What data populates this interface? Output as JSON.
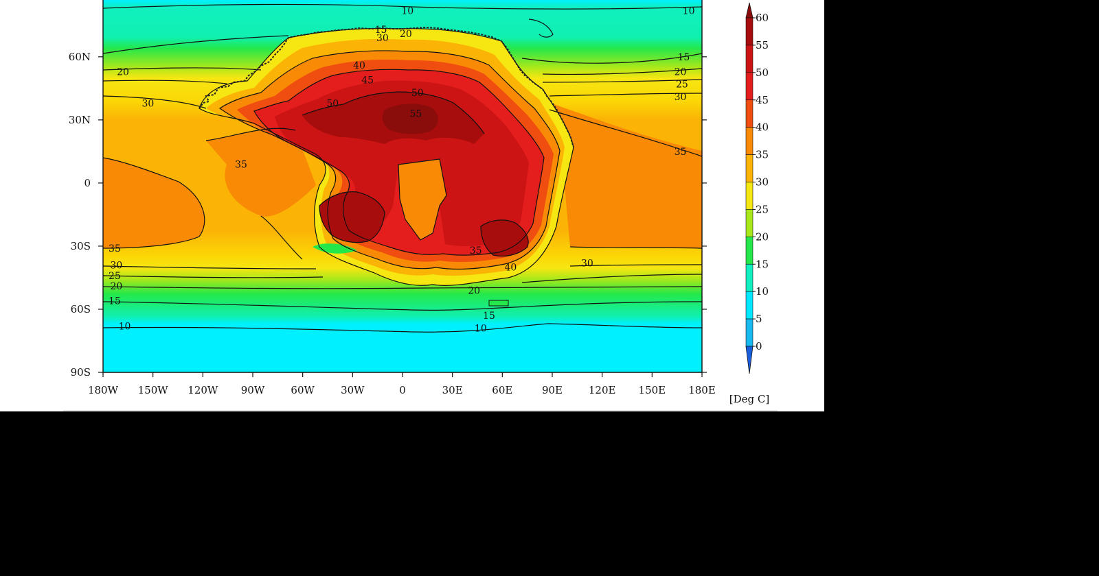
{
  "map": {
    "lat_ticks": [
      {
        "label": "60N",
        "lat": 60
      },
      {
        "label": "30N",
        "lat": 30
      },
      {
        "label": "0",
        "lat": 0
      },
      {
        "label": "30S",
        "lat": -30
      },
      {
        "label": "60S",
        "lat": -60
      },
      {
        "label": "90S",
        "lat": -90
      }
    ],
    "lon_ticks": [
      {
        "label": "180W",
        "lon": -180
      },
      {
        "label": "150W",
        "lon": -150
      },
      {
        "label": "120W",
        "lon": -120
      },
      {
        "label": "90W",
        "lon": -90
      },
      {
        "label": "60W",
        "lon": -60
      },
      {
        "label": "30W",
        "lon": -30
      },
      {
        "label": "0",
        "lon": 0
      },
      {
        "label": "30E",
        "lon": 30
      },
      {
        "label": "60E",
        "lon": 60
      },
      {
        "label": "90E",
        "lon": 90
      },
      {
        "label": "120E",
        "lon": 120
      },
      {
        "label": "150E",
        "lon": 150
      },
      {
        "label": "180E",
        "lon": 180
      }
    ],
    "lat_range": [
      -90,
      87
    ],
    "lon_range": [
      -180,
      180
    ],
    "contour_labels": [
      {
        "text": "10",
        "lon": 3,
        "lat": 82
      },
      {
        "text": "10",
        "lon": 172,
        "lat": 82
      },
      {
        "text": "15",
        "lon": -13,
        "lat": 73
      },
      {
        "text": "30",
        "lon": -12,
        "lat": 69
      },
      {
        "text": "20",
        "lon": 2,
        "lat": 71
      },
      {
        "text": "15",
        "lon": 169,
        "lat": 60
      },
      {
        "text": "20",
        "lon": -168,
        "lat": 53
      },
      {
        "text": "20",
        "lon": 167,
        "lat": 53
      },
      {
        "text": "25",
        "lon": 168,
        "lat": 47
      },
      {
        "text": "30",
        "lon": 167,
        "lat": 41
      },
      {
        "text": "30",
        "lon": -153,
        "lat": 38
      },
      {
        "text": "35",
        "lon": 167,
        "lat": 15
      },
      {
        "text": "35",
        "lon": -97,
        "lat": 9
      },
      {
        "text": "40",
        "lon": -26,
        "lat": 56
      },
      {
        "text": "45",
        "lon": -21,
        "lat": 49
      },
      {
        "text": "50",
        "lon": 9,
        "lat": 43
      },
      {
        "text": "50",
        "lon": -42,
        "lat": 38
      },
      {
        "text": "55",
        "lon": 8,
        "lat": 33
      },
      {
        "text": "35",
        "lon": -173,
        "lat": -31
      },
      {
        "text": "30",
        "lon": -172,
        "lat": -39
      },
      {
        "text": "25",
        "lon": -173,
        "lat": -44
      },
      {
        "text": "20",
        "lon": -172,
        "lat": -49
      },
      {
        "text": "15",
        "lon": -173,
        "lat": -56
      },
      {
        "text": "10",
        "lon": -167,
        "lat": -68
      },
      {
        "text": "20",
        "lon": 43,
        "lat": -51
      },
      {
        "text": "15",
        "lon": 52,
        "lat": -63
      },
      {
        "text": "10",
        "lon": 47,
        "lat": -69
      },
      {
        "text": "30",
        "lon": 111,
        "lat": -38
      },
      {
        "text": "40",
        "lon": 65,
        "lat": -40
      },
      {
        "text": "35",
        "lon": 44,
        "lat": -32
      }
    ]
  },
  "colorbar": {
    "labels": [
      "60",
      "55",
      "50",
      "45",
      "40",
      "35",
      "30",
      "25",
      "20",
      "15",
      "10",
      "5",
      "0"
    ],
    "colors": [
      "#8b0d0b",
      "#a80d0d",
      "#cc1414",
      "#e41d1d",
      "#f04e10",
      "#f98a05",
      "#fbb405",
      "#f6e612",
      "#a8e81a",
      "#24e84a",
      "#10f0c0",
      "#00e8ff",
      "#18b8f0",
      "#1a5ee0"
    ],
    "unit": "[Deg C]"
  }
}
